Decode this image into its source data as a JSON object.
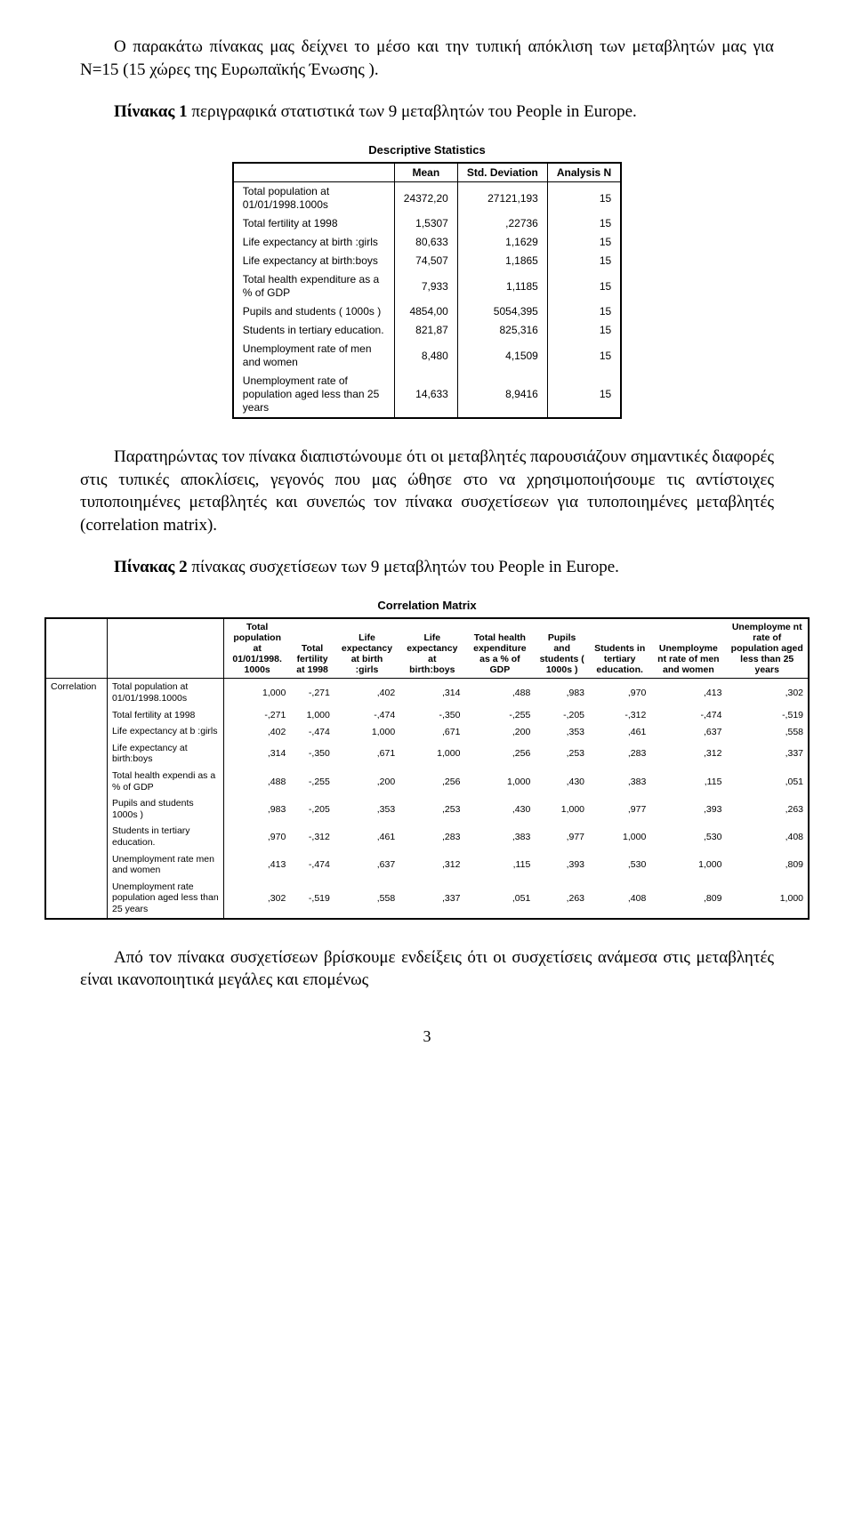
{
  "para1": "Ο παρακάτω πίνακας μας δείχνει το μέσο και την τυπική απόκλιση των μεταβλητών μας για Ν=15 (15 χώρες της Ευρωπαϊκής Ένωσης ).",
  "para2_lead": "Πίνακας 1",
  "para2_after": " περιγραφικά στατιστικά των 9 μεταβλητών του People in Europe.",
  "table1": {
    "title": "Descriptive Statistics",
    "headers": [
      "Mean",
      "Std. Deviation",
      "Analysis N"
    ],
    "rows": [
      {
        "label": "Total population at 01/01/1998.1000s",
        "mean": "24372,20",
        "sd": "27121,193",
        "n": "15"
      },
      {
        "label": "Total fertility at 1998",
        "mean": "1,5307",
        "sd": ",22736",
        "n": "15"
      },
      {
        "label": " Life expectancy at birth :girls",
        "mean": "80,633",
        "sd": "1,1629",
        "n": "15"
      },
      {
        "label": "Life expectancy at birth:boys",
        "mean": "74,507",
        "sd": "1,1865",
        "n": "15"
      },
      {
        "label": "Total health expenditure as a % of GDP",
        "mean": "7,933",
        "sd": "1,1185",
        "n": "15"
      },
      {
        "label": "Pupils and students ( 1000s )",
        "mean": "4854,00",
        "sd": "5054,395",
        "n": "15"
      },
      {
        "label": "Students in tertiary education.",
        "mean": "821,87",
        "sd": "825,316",
        "n": "15"
      },
      {
        "label": "Unemployment rate of men and women",
        "mean": "8,480",
        "sd": "4,1509",
        "n": "15"
      },
      {
        "label": "Unemployment rate of population aged less than 25 years",
        "mean": "14,633",
        "sd": "8,9416",
        "n": "15"
      }
    ]
  },
  "para3": "Παρατηρώντας τον πίνακα διαπιστώνουμε ότι οι μεταβλητές παρουσιάζουν σημαντικές διαφορές στις τυπικές αποκλίσεις, γεγονός που μας ώθησε στο να χρησιμοποιήσουμε τις αντίστοιχες τυποποιημένες μεταβλητές και συνεπώς τον πίνακα συσχετίσεων για τυποποιημένες μεταβλητές (correlation matrix).",
  "para4_lead": "Πίνακας 2",
  "para4_after": " πίνακας συσχετίσεων  των 9 μεταβλητών του People in Europe.",
  "table2": {
    "title": "Correlation Matrix",
    "side_label": "Correlation",
    "col_headers": [
      "Total population at 01/01/1998. 1000s",
      "Total fertility at 1998",
      "Life expectancy at birth :girls",
      "Life expectancy at birth:boys",
      "Total health expenditure as a % of GDP",
      "Pupils and students ( 1000s )",
      "Students in tertiary education.",
      "Unemployme nt rate of men and women",
      "Unemployme nt rate of population aged less than 25 years"
    ],
    "row_labels": [
      "Total population at 01/01/1998.1000s",
      "Total fertility at 1998",
      " Life expectancy at b :girls",
      "Life expectancy at birth:boys",
      "Total health expendi as a % of GDP",
      "Pupils and students 1000s )",
      "Students in tertiary education.",
      "Unemployment rate men and women",
      "Unemployment rate population aged less than 25 years"
    ],
    "matrix": [
      [
        "1,000",
        "-,271",
        ",402",
        ",314",
        ",488",
        ",983",
        ",970",
        ",413",
        ",302"
      ],
      [
        "-,271",
        "1,000",
        "-,474",
        "-,350",
        "-,255",
        "-,205",
        "-,312",
        "-,474",
        "-,519"
      ],
      [
        ",402",
        "-,474",
        "1,000",
        ",671",
        ",200",
        ",353",
        ",461",
        ",637",
        ",558"
      ],
      [
        ",314",
        "-,350",
        ",671",
        "1,000",
        ",256",
        ",253",
        ",283",
        ",312",
        ",337"
      ],
      [
        ",488",
        "-,255",
        ",200",
        ",256",
        "1,000",
        ",430",
        ",383",
        ",115",
        ",051"
      ],
      [
        ",983",
        "-,205",
        ",353",
        ",253",
        ",430",
        "1,000",
        ",977",
        ",393",
        ",263"
      ],
      [
        ",970",
        "-,312",
        ",461",
        ",283",
        ",383",
        ",977",
        "1,000",
        ",530",
        ",408"
      ],
      [
        ",413",
        "-,474",
        ",637",
        ",312",
        ",115",
        ",393",
        ",530",
        "1,000",
        ",809"
      ],
      [
        ",302",
        "-,519",
        ",558",
        ",337",
        ",051",
        ",263",
        ",408",
        ",809",
        "1,000"
      ]
    ]
  },
  "para5": "Από τον πίνακα συσχετίσεων βρίσκουμε ενδείξεις ότι οι συσχετίσεις ανάμεσα στις μεταβλητές είναι ικανοποιητικά μεγάλες και επομένως",
  "page_number": "3"
}
